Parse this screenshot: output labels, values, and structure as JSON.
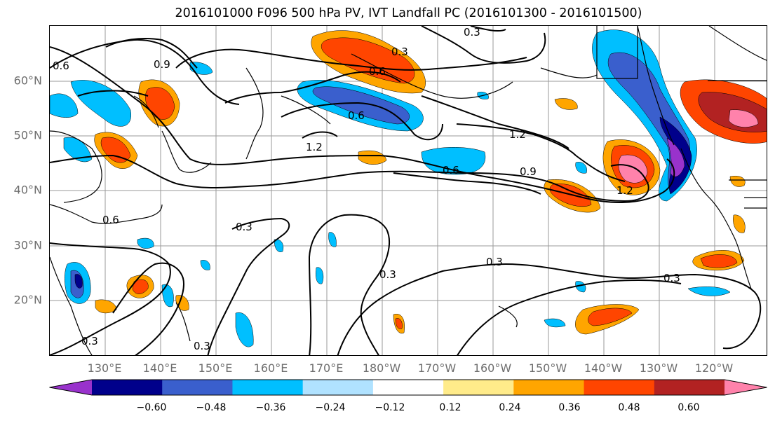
{
  "title": "2016101000 F096 500 hPa PV, IVT Landfall PC (2016101300 - 2016101500)",
  "lat_labels": [
    "60°N",
    "50°N",
    "40°N",
    "30°N",
    "20°N"
  ],
  "lon_labels": [
    "130°E",
    "140°E",
    "150°E",
    "160°E",
    "170°E",
    "180°W",
    "170°W",
    "160°W",
    "150°W",
    "140°W",
    "130°W",
    "120°W"
  ],
  "contour_labels": [
    "0.3",
    "0.3",
    "0.3",
    "0.3",
    "0.3",
    "0.3",
    "0.3",
    "0.3",
    "0.6",
    "0.6",
    "0.6",
    "0.6",
    "0.6",
    "0.9",
    "0.9",
    "1.2",
    "1.2",
    "1.2"
  ],
  "colorbar": {
    "ticks": [
      "−0.60",
      "−0.48",
      "−0.36",
      "−0.24",
      "−0.12",
      "0.12",
      "0.24",
      "0.36",
      "0.48",
      "0.60"
    ],
    "colors": [
      "#9932cc",
      "#00008b",
      "#3a5fcd",
      "#00bfff",
      "#b0e2ff",
      "#ffffff",
      "#ffeb8a",
      "#ffa500",
      "#ff4500",
      "#b22222",
      "#ff82ab"
    ]
  }
}
